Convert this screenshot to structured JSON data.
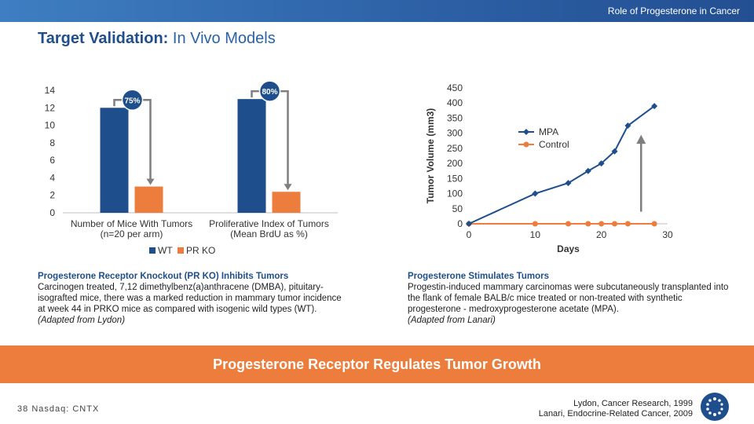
{
  "header": {
    "section": "Role of Progesterone in Cancer"
  },
  "title": {
    "bold": "Target Validation:",
    "rest": " In Vivo Models"
  },
  "colors": {
    "blue": "#1f4e8c",
    "orange": "#ed7d3c",
    "grey": "#7f7f7f"
  },
  "chart_data": [
    {
      "type": "bar",
      "categories": [
        "Number of Mice With Tumors (n=20 per arm)",
        "Proliferative Index of Tumors (Mean BrdU as %)"
      ],
      "category_lines": [
        [
          "Number of Mice With Tumors",
          "(n=20 per arm)"
        ],
        [
          "Proliferative Index of Tumors",
          "(Mean BrdU as %)"
        ]
      ],
      "series": [
        {
          "name": "WT",
          "values": [
            12,
            13
          ],
          "color": "#1f4e8c"
        },
        {
          "name": "PR KO",
          "values": [
            3,
            2.4
          ],
          "color": "#ed7d3c"
        }
      ],
      "ylim": [
        0,
        14
      ],
      "yticks": [
        "0",
        "2",
        "4",
        "6",
        "8",
        "10",
        "12",
        "14"
      ],
      "annotations": [
        "75%",
        "80%"
      ],
      "legend": "bottom",
      "grid": false
    },
    {
      "type": "line",
      "xlabel": "Days",
      "ylabel": "Tumor Volume (mm3)",
      "xlim": [
        0,
        30
      ],
      "ylim": [
        0,
        450
      ],
      "xticks": [
        "0",
        "10",
        "20",
        "30"
      ],
      "yticks": [
        "0",
        "50",
        "100",
        "150",
        "200",
        "250",
        "300",
        "350",
        "400",
        "450"
      ],
      "series": [
        {
          "name": "MPA",
          "color": "#1f4e8c",
          "x": [
            0,
            10,
            15,
            18,
            20,
            22,
            24,
            28
          ],
          "y": [
            0,
            100,
            135,
            175,
            200,
            240,
            325,
            390
          ]
        },
        {
          "name": "Control",
          "color": "#ed7d3c",
          "x": [
            0,
            10,
            15,
            18,
            20,
            22,
            24,
            28
          ],
          "y": [
            0,
            0,
            0,
            0,
            0,
            0,
            0,
            0
          ]
        }
      ],
      "legend": "upper-left inside",
      "grid": false
    }
  ],
  "left_text": {
    "heading": "Progesterone Receptor Knockout (PR KO) Inhibits Tumors",
    "lines": [
      "Carcinogen treated, 7,12 dimethylbenz(a)anthracene (DMBA), pituitary-",
      "isografted mice, there was a marked reduction in mammary tumor incidence",
      "at week 44 in PRKO mice as compared with isogenic wild types (WT)."
    ],
    "source": "(Adapted from Lydon)"
  },
  "right_text": {
    "heading": "Progesterone Stimulates Tumors",
    "lines": [
      "Progestin-induced mammary carcinomas were subcutaneously transplanted into",
      "the flank of female BALB/c mice treated or non-treated with synthetic",
      "progesterone - medroxyprogesterone acetate (MPA)."
    ],
    "source": "(Adapted from Lanari)"
  },
  "banner": {
    "text": "Progesterone Receptor Regulates Tumor Growth"
  },
  "footer": {
    "page": "38",
    "ticker": "Nasdaq: CNTX"
  },
  "references": [
    "Lydon, Cancer Research, 1999",
    "Lanari, Endocrine-Related Cancer, 2009"
  ]
}
